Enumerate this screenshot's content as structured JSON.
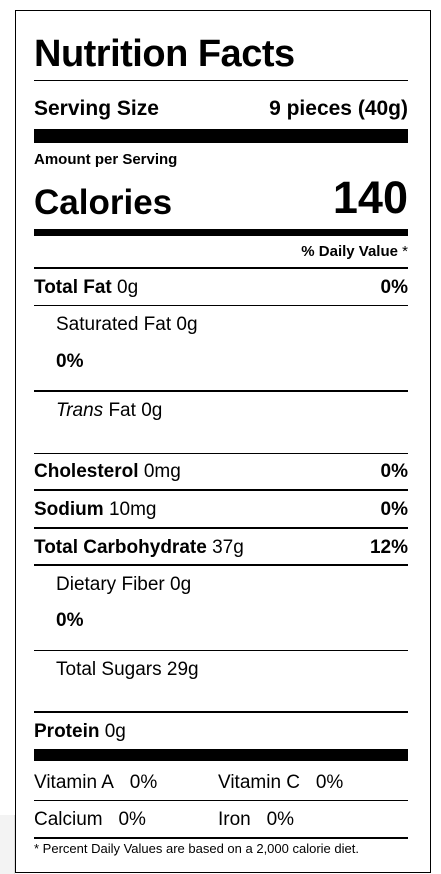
{
  "title": "Nutrition Facts",
  "serving": {
    "label": "Serving Size",
    "value": "9 pieces (40g)"
  },
  "amount_per_serving": "Amount per Serving",
  "calories": {
    "label": "Calories",
    "value": "140"
  },
  "daily_value_header": {
    "text": "% Daily Value",
    "star": "*"
  },
  "total_fat": {
    "label": "Total Fat",
    "amount": "0g",
    "pct": "0%"
  },
  "saturated_fat": {
    "label": "Saturated Fat",
    "amount": "0g",
    "pct": "0%"
  },
  "trans_fat": {
    "label_italic": "Trans",
    "label_rest": "Fat",
    "amount": "0g"
  },
  "cholesterol": {
    "label": "Cholesterol",
    "amount": "0mg",
    "pct": "0%"
  },
  "sodium": {
    "label": "Sodium",
    "amount": "10mg",
    "pct": "0%"
  },
  "total_carbohydrate": {
    "label": "Total Carbohydrate",
    "amount": "37g",
    "pct": "12%"
  },
  "dietary_fiber": {
    "label": "Dietary Fiber",
    "amount": "0g",
    "pct": "0%"
  },
  "total_sugars": {
    "label": "Total Sugars",
    "amount": "29g"
  },
  "protein": {
    "label": "Protein",
    "amount": "0g"
  },
  "vitamins": [
    {
      "label": "Vitamin A",
      "pct": "0%"
    },
    {
      "label": "Vitamin C",
      "pct": "0%"
    },
    {
      "label": "Calcium",
      "pct": "0%"
    },
    {
      "label": "Iron",
      "pct": "0%"
    }
  ],
  "footnote": "* Percent Daily Values are based on a 2,000 calorie diet."
}
